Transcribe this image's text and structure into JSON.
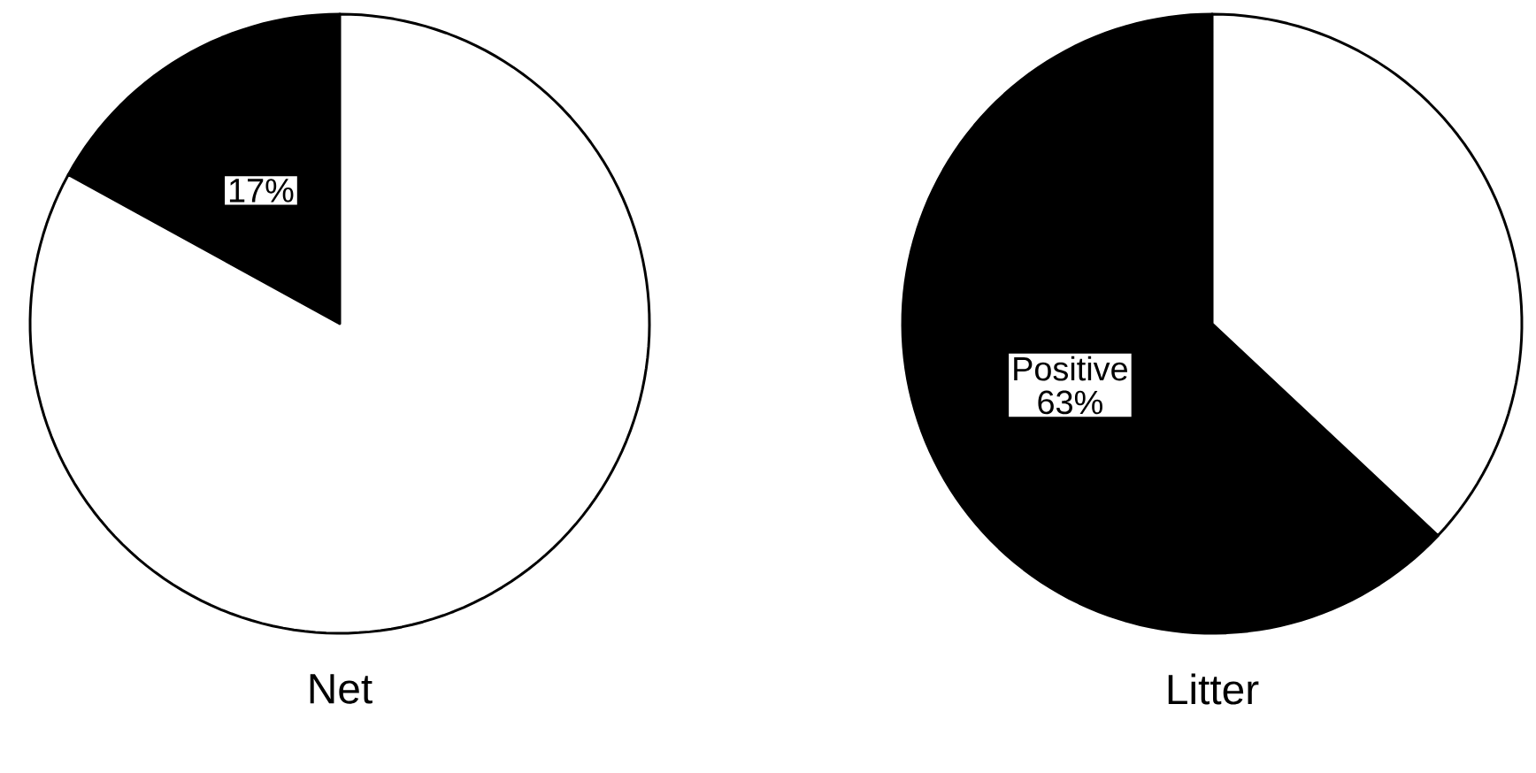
{
  "chart_data": [
    {
      "type": "pie",
      "xlabel": "Net",
      "categories": [
        null,
        null
      ],
      "values": [
        17,
        83
      ],
      "colors": [
        "#000000",
        "#ffffff"
      ],
      "value_labels": [
        "17%",
        null
      ]
    },
    {
      "type": "pie",
      "xlabel": "Litter",
      "categories": [
        "Positive",
        null
      ],
      "values": [
        63,
        37
      ],
      "colors": [
        "#000000",
        "#ffffff"
      ],
      "value_labels": [
        "63%",
        null
      ]
    }
  ]
}
